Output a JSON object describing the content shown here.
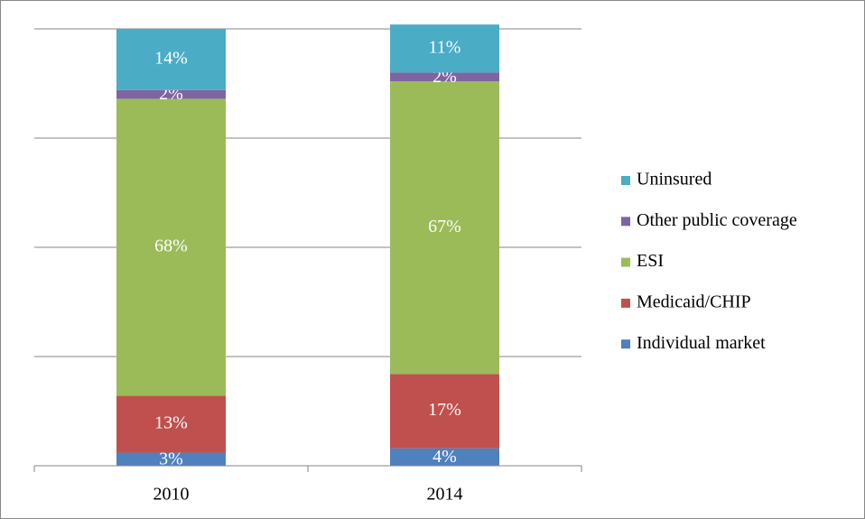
{
  "chart_data": {
    "type": "stacked_bar",
    "categories": [
      "2010",
      "2014"
    ],
    "series": [
      {
        "name": "Individual market",
        "color": "#4f81bd",
        "values": [
          3,
          4
        ]
      },
      {
        "name": "Medicaid/CHIP",
        "color": "#c0504d",
        "values": [
          13,
          17
        ]
      },
      {
        "name": "ESI",
        "color": "#9bbb59",
        "values": [
          68,
          67
        ]
      },
      {
        "name": "Other public coverage",
        "color": "#8064a2",
        "values": [
          2,
          2
        ]
      },
      {
        "name": "Uninsured",
        "color": "#4bacc6",
        "values": [
          14,
          11
        ]
      }
    ],
    "value_labels": {
      "Individual market": [
        "3%",
        "4%"
      ],
      "Medicaid/CHIP": [
        "13%",
        "17%"
      ],
      "ESI": [
        "68%",
        "67%"
      ],
      "Other public coverage": [
        "2%",
        "2%"
      ],
      "Uninsured": [
        "14%",
        "11%"
      ]
    },
    "ylim": [
      0,
      100
    ],
    "yticks": [
      0,
      25,
      50,
      75,
      100
    ],
    "grid": true,
    "legend": "right"
  }
}
